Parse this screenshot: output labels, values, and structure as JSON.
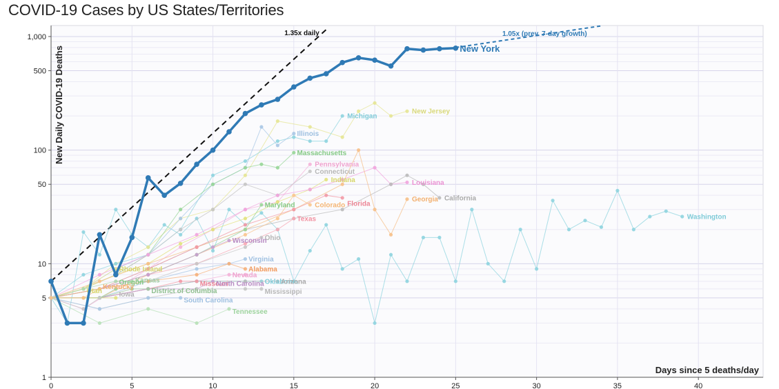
{
  "page_title": "COVID-19 Cases by US States/Territories",
  "chart_data": {
    "type": "line",
    "title": "COVID-19 Cases by US States/Territories",
    "xlabel": "Days since 5 deaths/day",
    "ylabel": "New Daily COVID-19 Deaths",
    "y_scale": "log",
    "xlim": [
      0,
      44
    ],
    "ylim": [
      1,
      1250
    ],
    "x_ticks": [
      0,
      5,
      10,
      15,
      20,
      25,
      30,
      35,
      40
    ],
    "y_ticks": [
      {
        "value": 1,
        "label": "1"
      },
      {
        "value": 5,
        "label": "5"
      },
      {
        "value": 10,
        "label": "10"
      },
      {
        "value": 50,
        "label": "50"
      },
      {
        "value": 100,
        "label": "100"
      },
      {
        "value": 500,
        "label": "500"
      },
      {
        "value": 1000,
        "label": "1,000"
      }
    ],
    "grid": true,
    "reference_lines": [
      {
        "label": "1.35x daily",
        "growth": 1.35,
        "start": [
          0,
          7
        ],
        "x_end": 17,
        "color": "#111111"
      },
      {
        "label": "1.05x (prev. 7-day growth)",
        "growth": 1.05,
        "start": [
          25,
          800
        ],
        "x_end": 36.5,
        "color": "#2f7ab5"
      }
    ],
    "highlight_series": {
      "name": "New York",
      "color": "#2f7ab5",
      "x": [
        0,
        1,
        2,
        3,
        4,
        5,
        6,
        7,
        8,
        9,
        10,
        11,
        12,
        13,
        14,
        15,
        16,
        17,
        18,
        19,
        20,
        21,
        22,
        23,
        24,
        25
      ],
      "y": [
        7,
        3,
        3,
        18,
        8,
        17,
        57,
        40,
        51,
        75,
        100,
        145,
        210,
        250,
        280,
        360,
        430,
        470,
        590,
        650,
        620,
        550,
        780,
        760,
        780,
        790
      ]
    },
    "series": [
      {
        "name": "Washington",
        "color": "#8fd4df",
        "x": [
          0,
          1,
          2,
          3,
          4,
          5,
          6,
          7,
          8,
          9,
          10,
          11,
          12,
          13,
          14,
          15,
          16,
          17,
          18,
          19,
          20,
          21,
          22,
          23,
          24,
          25,
          26,
          27,
          28,
          29,
          30,
          31,
          32,
          33,
          34,
          35,
          36,
          37,
          38,
          39
        ],
        "y": [
          5,
          3,
          19,
          12,
          30,
          18,
          14,
          22,
          18,
          25,
          13,
          30,
          22,
          28,
          20,
          7,
          13,
          22,
          9,
          11,
          3,
          12,
          7,
          17,
          17,
          7,
          30,
          10,
          7,
          20,
          9,
          36,
          20,
          24,
          21,
          44,
          20,
          26,
          29,
          26
        ]
      },
      {
        "name": "New Jersey",
        "color": "#e6e695",
        "x": [
          0,
          2,
          4,
          6,
          8,
          10,
          12,
          14,
          16,
          18,
          19,
          20,
          21,
          22
        ],
        "y": [
          5,
          6,
          10,
          14,
          25,
          30,
          60,
          180,
          160,
          130,
          220,
          260,
          200,
          220
        ]
      },
      {
        "name": "Michigan",
        "color": "#8fd4df",
        "x": [
          0,
          2,
          4,
          6,
          8,
          10,
          12,
          14,
          15,
          16,
          17,
          18
        ],
        "y": [
          5,
          8,
          10,
          12,
          20,
          60,
          80,
          120,
          130,
          120,
          120,
          200
        ]
      },
      {
        "name": "Illinois",
        "color": "#aac8e6",
        "x": [
          0,
          2,
          4,
          6,
          8,
          10,
          12,
          13,
          14,
          15
        ],
        "y": [
          5,
          6,
          9,
          12,
          25,
          50,
          70,
          160,
          110,
          140
        ]
      },
      {
        "name": "Massachusetts",
        "color": "#99d699",
        "x": [
          0,
          2,
          4,
          6,
          8,
          10,
          12,
          13,
          14,
          15
        ],
        "y": [
          5,
          6,
          8,
          12,
          30,
          50,
          70,
          75,
          70,
          95
        ]
      },
      {
        "name": "Pennsylvania",
        "color": "#f4b4d9",
        "x": [
          0,
          2,
          4,
          6,
          8,
          10,
          12,
          14,
          16
        ],
        "y": [
          5,
          4,
          6,
          9,
          14,
          20,
          30,
          35,
          75
        ]
      },
      {
        "name": "Connecticut",
        "color": "#c6c6c6",
        "x": [
          0,
          2,
          4,
          6,
          8,
          10,
          12,
          14,
          16
        ],
        "y": [
          5,
          6,
          8,
          12,
          20,
          30,
          50,
          40,
          65
        ]
      },
      {
        "name": "Indiana",
        "color": "#e2e27e",
        "x": [
          0,
          2,
          4,
          6,
          8,
          10,
          12,
          14,
          16,
          17
        ],
        "y": [
          5,
          6,
          8,
          10,
          15,
          20,
          25,
          35,
          45,
          55
        ]
      },
      {
        "name": "Louisiana",
        "color": "#f1a5de",
        "x": [
          0,
          3,
          6,
          9,
          12,
          14,
          16,
          18,
          20,
          21,
          22
        ],
        "y": [
          5,
          8,
          12,
          18,
          30,
          40,
          45,
          55,
          70,
          50,
          52
        ]
      },
      {
        "name": "California",
        "color": "#bbbbbb",
        "x": [
          0,
          3,
          6,
          9,
          12,
          15,
          18,
          21,
          22,
          23,
          24
        ],
        "y": [
          5,
          6,
          9,
          14,
          20,
          25,
          30,
          50,
          60,
          50,
          38
        ]
      },
      {
        "name": "Georgia",
        "color": "#f6c08a",
        "x": [
          0,
          3,
          6,
          9,
          12,
          15,
          18,
          19,
          20,
          21,
          22
        ],
        "y": [
          5,
          7,
          10,
          14,
          20,
          30,
          50,
          100,
          30,
          18,
          37
        ]
      },
      {
        "name": "Florida",
        "color": "#f29aa6",
        "x": [
          0,
          3,
          6,
          9,
          12,
          15,
          17,
          18
        ],
        "y": [
          5,
          6,
          9,
          14,
          22,
          30,
          40,
          38
        ]
      },
      {
        "name": "Colorado",
        "color": "#f9c68f",
        "x": [
          0,
          3,
          6,
          9,
          12,
          14,
          15,
          16
        ],
        "y": [
          5,
          5,
          8,
          12,
          18,
          25,
          40,
          33
        ]
      },
      {
        "name": "Maryland",
        "color": "#9ad69a",
        "x": [
          0,
          3,
          6,
          9,
          12,
          13
        ],
        "y": [
          5,
          6,
          8,
          12,
          20,
          33
        ]
      },
      {
        "name": "Texas",
        "color": "#f7a8b4",
        "x": [
          0,
          3,
          6,
          9,
          12,
          14,
          15
        ],
        "y": [
          5,
          6,
          8,
          10,
          15,
          20,
          25
        ]
      },
      {
        "name": "Wisconsin",
        "color": "#c7a0d0",
        "x": [
          0,
          3,
          6,
          9,
          10,
          11
        ],
        "y": [
          5,
          6,
          8,
          12,
          14,
          16
        ]
      },
      {
        "name": "Ohio",
        "color": "#c8c8c8",
        "x": [
          0,
          3,
          6,
          9,
          12,
          13
        ],
        "y": [
          5,
          6,
          7,
          10,
          14,
          17
        ]
      },
      {
        "name": "Virginia",
        "color": "#aac8e6",
        "x": [
          0,
          3,
          6,
          9,
          11,
          12
        ],
        "y": [
          5,
          5,
          7,
          9,
          10,
          11
        ]
      },
      {
        "name": "Alabama",
        "color": "#f6b07a",
        "x": [
          0,
          3,
          6,
          9,
          11,
          12
        ],
        "y": [
          5,
          6,
          7,
          8,
          10,
          9
        ]
      },
      {
        "name": "Nevada",
        "color": "#f4b4d9",
        "x": [
          0,
          3,
          6,
          9,
          11,
          12
        ],
        "y": [
          5,
          5,
          6,
          7,
          8,
          8
        ]
      },
      {
        "name": "Oklahoma",
        "color": "#8fd4df",
        "x": [
          0,
          3,
          6,
          9,
          12,
          13
        ],
        "y": [
          5,
          5,
          6,
          7,
          7,
          7
        ]
      },
      {
        "name": "Arizona",
        "color": "#bbbbbb",
        "x": [
          0,
          3,
          6,
          9,
          12,
          14
        ],
        "y": [
          5,
          5,
          6,
          7,
          7,
          7
        ]
      },
      {
        "name": "Rhode Island",
        "color": "#e6e695",
        "x": [
          0,
          2,
          4
        ],
        "y": [
          5,
          6,
          9
        ]
      },
      {
        "name": "Kansas",
        "color": "#b0d8b0",
        "x": [
          0,
          2,
          4,
          5
        ],
        "y": [
          5,
          6,
          7,
          7
        ]
      },
      {
        "name": "Missouri",
        "color": "#f29aa6",
        "x": [
          0,
          3,
          6,
          8,
          9
        ],
        "y": [
          5,
          5,
          6,
          7,
          7
        ]
      },
      {
        "name": "North Carolina",
        "color": "#c7a0d0",
        "x": [
          0,
          3,
          6,
          9,
          10
        ],
        "y": [
          5,
          5,
          6,
          6,
          7
        ]
      },
      {
        "name": "Mississippi",
        "color": "#c6c6c6",
        "x": [
          0,
          3,
          6,
          9,
          12,
          13
        ],
        "y": [
          5,
          4,
          5,
          6,
          6,
          6
        ]
      },
      {
        "name": "District of Columbia",
        "color": "#a1c9a1",
        "x": [
          0,
          3,
          5,
          6
        ],
        "y": [
          5,
          5,
          6,
          6
        ]
      },
      {
        "name": "Oregon",
        "color": "#9ad69a",
        "x": [
          0,
          3,
          4
        ],
        "y": [
          5,
          5,
          6
        ]
      },
      {
        "name": "South Carolina",
        "color": "#aac8e6",
        "x": [
          0,
          3,
          6,
          8
        ],
        "y": [
          5,
          4,
          5,
          5
        ]
      },
      {
        "name": "Utah",
        "color": "#e2e27e",
        "x": [
          0,
          2,
          4
        ],
        "y": [
          5,
          5,
          5
        ]
      },
      {
        "name": "Tennessee",
        "color": "#b7e0b7",
        "x": [
          0,
          3,
          6,
          9,
          11
        ],
        "y": [
          5,
          3,
          4,
          3,
          4
        ]
      },
      {
        "name": "Iowa",
        "color": "#c8c8c8",
        "x": [
          0,
          2,
          3
        ],
        "y": [
          5,
          4,
          5
        ]
      },
      {
        "name": "Kentucky",
        "color": "#f6c08a",
        "x": [
          0,
          2,
          3
        ],
        "y": [
          5,
          5,
          6
        ]
      }
    ],
    "labels": [
      {
        "text": "Michigan",
        "color": "#7fcbd8",
        "x": 18.3,
        "y": 200
      },
      {
        "text": "New Jersey",
        "color": "#d9d97a",
        "x": 22.3,
        "y": 220
      },
      {
        "text": "Illinois",
        "color": "#9dbfe0",
        "x": 15.2,
        "y": 140
      },
      {
        "text": "Massachusetts",
        "color": "#85c985",
        "x": 15.2,
        "y": 95
      },
      {
        "text": "Pennsylvania",
        "color": "#efa3cf",
        "x": 16.3,
        "y": 75
      },
      {
        "text": "Connecticut",
        "color": "#b7b7b7",
        "x": 16.3,
        "y": 65
      },
      {
        "text": "Indiana",
        "color": "#d6d66a",
        "x": 17.3,
        "y": 55
      },
      {
        "text": "Louisiana",
        "color": "#eb92d3",
        "x": 22.3,
        "y": 52
      },
      {
        "text": "California",
        "color": "#aaaaaa",
        "x": 24.3,
        "y": 38
      },
      {
        "text": "Georgia",
        "color": "#f2b070",
        "x": 22.3,
        "y": 37
      },
      {
        "text": "Florida",
        "color": "#ec8595",
        "x": 18.3,
        "y": 34
      },
      {
        "text": "Colorado",
        "color": "#f5b675",
        "x": 16.3,
        "y": 33
      },
      {
        "text": "Maryland",
        "color": "#85c985",
        "x": 13.2,
        "y": 33
      },
      {
        "text": "Texas",
        "color": "#f293a2",
        "x": 15.2,
        "y": 25
      },
      {
        "text": "Washington",
        "color": "#7fcbd8",
        "x": 39.3,
        "y": 26
      },
      {
        "text": "Wisconsin",
        "color": "#b78ac2",
        "x": 11.2,
        "y": 16
      },
      {
        "text": "Ohio",
        "color": "#b5b5b5",
        "x": 13.2,
        "y": 17
      },
      {
        "text": "Virginia",
        "color": "#9dbfe0",
        "x": 12.2,
        "y": 11
      },
      {
        "text": "Alabama",
        "color": "#f29a5c",
        "x": 12.2,
        "y": 9
      },
      {
        "text": "Nevada",
        "color": "#efa3cf",
        "x": 11.2,
        "y": 8
      },
      {
        "text": "Oklahoma",
        "color": "#7fcbd8",
        "x": 13.2,
        "y": 7
      },
      {
        "text": "Arizona",
        "color": "#aaaaaa",
        "x": 14.2,
        "y": 7
      },
      {
        "text": "Missouri",
        "color": "#ec8595",
        "x": 9.2,
        "y": 6.7
      },
      {
        "text": "North Carolina",
        "color": "#b78ac2",
        "x": 10.2,
        "y": 6.7
      },
      {
        "text": "Mississippi",
        "color": "#b7b7b7",
        "x": 13.2,
        "y": 5.7
      },
      {
        "text": "District of Columbia",
        "color": "#8fbf8f",
        "x": 6.2,
        "y": 5.8
      },
      {
        "text": "South Carolina",
        "color": "#9dbfe0",
        "x": 8.2,
        "y": 4.8
      },
      {
        "text": "Tennessee",
        "color": "#9dd39d",
        "x": 11.2,
        "y": 3.8
      },
      {
        "text": "Rhode Island",
        "color": "#d6d66a",
        "x": 4.2,
        "y": 9
      },
      {
        "text": "Kansas",
        "color": "#a0cba0",
        "x": 5.2,
        "y": 7.2
      },
      {
        "text": "Oregon",
        "color": "#85c985",
        "x": 4.2,
        "y": 6.9
      },
      {
        "text": "Utah",
        "color": "#d6d66a",
        "x": 2.2,
        "y": 5.8
      },
      {
        "text": "Iowa",
        "color": "#b5b5b5",
        "x": 4.2,
        "y": 5.4
      },
      {
        "text": "Kentucky",
        "color": "#f2b070",
        "x": 3.2,
        "y": 6.3
      }
    ]
  }
}
